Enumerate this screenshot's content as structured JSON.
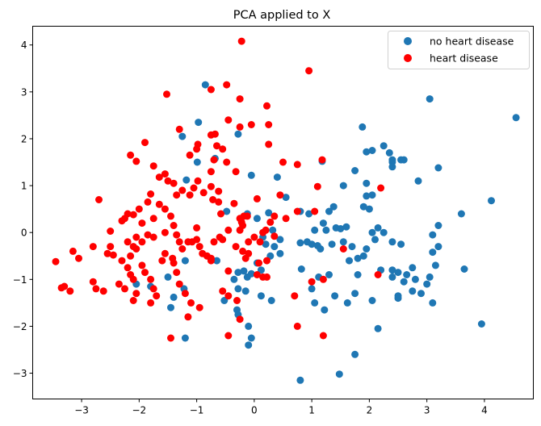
{
  "chart_data": {
    "type": "scatter",
    "title": "PCA applied to X",
    "xlabel": "",
    "ylabel": "",
    "xlim": [
      -3.85,
      4.85
    ],
    "ylim": [
      -3.55,
      4.4
    ],
    "xticks": [
      -3,
      -2,
      -1,
      0,
      1,
      2,
      3,
      4
    ],
    "yticks": [
      -3,
      -2,
      -1,
      0,
      1,
      2,
      3,
      4
    ],
    "grid": false,
    "legend_position": "top-right",
    "series": [
      {
        "name": "no heart disease",
        "color": "#1f77b4",
        "points": [
          [
            -0.85,
            3.15
          ],
          [
            -0.97,
            2.35
          ],
          [
            -1.25,
            2.05
          ],
          [
            -0.68,
            1.58
          ],
          [
            -0.99,
            1.5
          ],
          [
            -1.18,
            1.12
          ],
          [
            -0.28,
            2.1
          ],
          [
            -0.48,
            0.45
          ],
          [
            -0.12,
            0.4
          ],
          [
            0.05,
            0.3
          ],
          [
            0.25,
            0.42
          ],
          [
            -0.05,
            1.22
          ],
          [
            0.4,
            1.18
          ],
          [
            0.55,
            0.75
          ],
          [
            0.32,
            0.05
          ],
          [
            0.15,
            -0.1
          ],
          [
            0.28,
            -0.5
          ],
          [
            0.35,
            -0.3
          ],
          [
            0.45,
            -0.45
          ],
          [
            0.05,
            -0.65
          ],
          [
            0.12,
            -0.8
          ],
          [
            -0.05,
            -0.88
          ],
          [
            -0.12,
            -0.95
          ],
          [
            -0.18,
            -0.82
          ],
          [
            -0.28,
            -0.85
          ],
          [
            -0.35,
            -1.0
          ],
          [
            -0.52,
            -1.45
          ],
          [
            -0.28,
            -1.2
          ],
          [
            -0.15,
            -1.25
          ],
          [
            -0.3,
            -1.65
          ],
          [
            -0.28,
            -1.75
          ],
          [
            -0.1,
            -2.0
          ],
          [
            -0.05,
            -2.25
          ],
          [
            -0.1,
            -2.4
          ],
          [
            -0.65,
            -0.6
          ],
          [
            -1.2,
            -0.6
          ],
          [
            -1.22,
            -1.2
          ],
          [
            -1.4,
            -1.38
          ],
          [
            -1.45,
            -1.6
          ],
          [
            -1.2,
            -2.25
          ],
          [
            -1.8,
            -1.15
          ],
          [
            -2.05,
            -1.1
          ],
          [
            -1.5,
            -0.95
          ],
          [
            0.12,
            -1.35
          ],
          [
            0.3,
            -1.45
          ],
          [
            0.8,
            -3.15
          ],
          [
            1.48,
            -3.02
          ],
          [
            1.75,
            -2.6
          ],
          [
            1.0,
            -1.2
          ],
          [
            1.05,
            -1.5
          ],
          [
            1.22,
            -1.65
          ],
          [
            1.4,
            -1.35
          ],
          [
            1.12,
            -0.95
          ],
          [
            1.3,
            -0.9
          ],
          [
            1.62,
            -1.5
          ],
          [
            1.75,
            -1.3
          ],
          [
            1.0,
            -0.25
          ],
          [
            1.1,
            -0.28
          ],
          [
            0.92,
            -0.2
          ],
          [
            0.8,
            -0.22
          ],
          [
            0.82,
            -0.78
          ],
          [
            1.25,
            0.05
          ],
          [
            1.35,
            -0.25
          ],
          [
            1.42,
            0.1
          ],
          [
            1.5,
            0.08
          ],
          [
            1.38,
            0.55
          ],
          [
            1.3,
            0.45
          ],
          [
            1.2,
            0.2
          ],
          [
            0.95,
            0.4
          ],
          [
            0.8,
            0.45
          ],
          [
            1.18,
            1.52
          ],
          [
            1.55,
            1.0
          ],
          [
            1.75,
            1.32
          ],
          [
            1.95,
            1.05
          ],
          [
            1.95,
            0.78
          ],
          [
            2.0,
            0.5
          ],
          [
            2.05,
            0.8
          ],
          [
            2.05,
            1.75
          ],
          [
            1.95,
            1.72
          ],
          [
            1.88,
            2.25
          ],
          [
            2.25,
            1.85
          ],
          [
            2.35,
            1.7
          ],
          [
            2.4,
            1.5
          ],
          [
            2.4,
            1.4
          ],
          [
            2.4,
            1.55
          ],
          [
            2.55,
            1.55
          ],
          [
            2.6,
            1.55
          ],
          [
            2.85,
            1.1
          ],
          [
            3.05,
            2.85
          ],
          [
            3.2,
            1.38
          ],
          [
            3.2,
            0.15
          ],
          [
            3.1,
            -0.05
          ],
          [
            3.1,
            -0.42
          ],
          [
            3.15,
            -0.7
          ],
          [
            3.2,
            -0.3
          ],
          [
            3.05,
            -0.95
          ],
          [
            3.0,
            -1.1
          ],
          [
            2.9,
            -1.3
          ],
          [
            2.75,
            -0.75
          ],
          [
            2.65,
            -0.9
          ],
          [
            2.8,
            -1.0
          ],
          [
            2.75,
            -1.25
          ],
          [
            2.5,
            -1.35
          ],
          [
            2.5,
            -1.4
          ],
          [
            2.6,
            -1.05
          ],
          [
            2.4,
            -0.95
          ],
          [
            2.55,
            -0.25
          ],
          [
            2.5,
            -0.85
          ],
          [
            2.4,
            -0.8
          ],
          [
            2.2,
            -0.8
          ],
          [
            2.1,
            -0.15
          ],
          [
            2.05,
            0.0
          ],
          [
            1.95,
            -0.35
          ],
          [
            1.9,
            -0.5
          ],
          [
            1.8,
            -0.55
          ],
          [
            1.65,
            -0.6
          ],
          [
            1.7,
            -0.3
          ],
          [
            1.55,
            -0.2
          ],
          [
            1.6,
            0.12
          ],
          [
            1.8,
            -0.9
          ],
          [
            2.15,
            -2.05
          ],
          [
            2.05,
            -1.45
          ],
          [
            2.25,
            0.0
          ],
          [
            3.1,
            -1.5
          ],
          [
            3.6,
            0.4
          ],
          [
            3.65,
            -0.78
          ],
          [
            3.95,
            -1.95
          ],
          [
            4.12,
            0.68
          ],
          [
            4.55,
            2.45
          ],
          [
            1.9,
            0.55
          ],
          [
            2.4,
            -0.2
          ],
          [
            2.15,
            0.1
          ],
          [
            0.45,
            -0.15
          ],
          [
            0.2,
            -0.25
          ],
          [
            1.05,
            0.05
          ],
          [
            1.15,
            -0.35
          ]
        ]
      },
      {
        "name": "heart disease",
        "color": "#ff0000",
        "points": [
          [
            -0.22,
            4.08
          ],
          [
            0.95,
            3.45
          ],
          [
            -1.52,
            2.95
          ],
          [
            -0.75,
            3.05
          ],
          [
            -0.48,
            3.15
          ],
          [
            -0.25,
            2.85
          ],
          [
            0.22,
            2.7
          ],
          [
            -0.45,
            2.4
          ],
          [
            -0.25,
            2.25
          ],
          [
            -0.05,
            2.3
          ],
          [
            0.25,
            2.3
          ],
          [
            0.25,
            1.88
          ],
          [
            -1.3,
            2.2
          ],
          [
            -0.98,
            1.88
          ],
          [
            -1.0,
            1.78
          ],
          [
            -1.12,
            1.65
          ],
          [
            -0.75,
            2.08
          ],
          [
            -0.68,
            2.1
          ],
          [
            -0.65,
            1.85
          ],
          [
            -0.55,
            1.78
          ],
          [
            -0.7,
            1.55
          ],
          [
            -0.75,
            1.3
          ],
          [
            -0.32,
            1.3
          ],
          [
            -0.48,
            1.5
          ],
          [
            -1.9,
            1.92
          ],
          [
            -2.15,
            1.65
          ],
          [
            -2.05,
            1.52
          ],
          [
            -1.75,
            1.42
          ],
          [
            -1.65,
            1.18
          ],
          [
            -1.5,
            1.1
          ],
          [
            -1.55,
            1.25
          ],
          [
            -1.4,
            1.05
          ],
          [
            -1.35,
            0.8
          ],
          [
            -1.25,
            0.9
          ],
          [
            -1.12,
            0.8
          ],
          [
            -1.05,
            0.95
          ],
          [
            -0.98,
            1.1
          ],
          [
            -0.88,
            0.85
          ],
          [
            -0.72,
            0.7
          ],
          [
            -0.62,
            0.65
          ],
          [
            -0.62,
            0.88
          ],
          [
            -0.75,
            0.98
          ],
          [
            -0.35,
            0.62
          ],
          [
            -0.25,
            0.3
          ],
          [
            -0.18,
            0.35
          ],
          [
            -0.12,
            0.35
          ],
          [
            -0.22,
            0.22
          ],
          [
            -0.25,
            0.05
          ],
          [
            0.05,
            0.72
          ],
          [
            0.45,
            0.8
          ],
          [
            0.35,
            0.35
          ],
          [
            0.28,
            0.22
          ],
          [
            0.2,
            0.05
          ],
          [
            0.5,
            1.5
          ],
          [
            0.75,
            1.45
          ],
          [
            1.18,
            1.55
          ],
          [
            1.1,
            0.98
          ],
          [
            0.75,
            0.45
          ],
          [
            1.05,
            0.45
          ],
          [
            2.2,
            0.95
          ],
          [
            -2.2,
            0.4
          ],
          [
            -2.25,
            0.3
          ],
          [
            -2.1,
            0.38
          ],
          [
            -2.3,
            0.25
          ],
          [
            -2.5,
            0.03
          ],
          [
            -2.7,
            0.7
          ],
          [
            -2.0,
            0.5
          ],
          [
            -1.85,
            0.65
          ],
          [
            -1.8,
            0.82
          ],
          [
            -1.65,
            0.6
          ],
          [
            -1.55,
            0.5
          ],
          [
            -1.75,
            0.3
          ],
          [
            -1.95,
            0.2
          ],
          [
            -2.05,
            -0.1
          ],
          [
            -2.2,
            -0.2
          ],
          [
            -2.1,
            -0.3
          ],
          [
            -1.95,
            -0.2
          ],
          [
            -1.85,
            -0.05
          ],
          [
            -1.75,
            -0.1
          ],
          [
            -1.55,
            0.0
          ],
          [
            -1.35,
            -0.05
          ],
          [
            -1.3,
            -0.2
          ],
          [
            -1.25,
            -0.35
          ],
          [
            -1.15,
            -0.2
          ],
          [
            -1.08,
            -0.2
          ],
          [
            -1.0,
            -0.15
          ],
          [
            -0.95,
            -0.3
          ],
          [
            -0.9,
            -0.45
          ],
          [
            -0.82,
            -0.5
          ],
          [
            -0.75,
            -0.6
          ],
          [
            -0.7,
            -0.2
          ],
          [
            -0.6,
            -0.1
          ],
          [
            -0.55,
            -0.15
          ],
          [
            -0.45,
            0.05
          ],
          [
            -0.32,
            -0.3
          ],
          [
            -0.2,
            -0.4
          ],
          [
            -0.15,
            -0.55
          ],
          [
            -0.1,
            -0.45
          ],
          [
            0.0,
            -0.1
          ],
          [
            0.1,
            -0.2
          ],
          [
            0.15,
            0.0
          ],
          [
            0.08,
            -0.65
          ],
          [
            0.22,
            -0.6
          ],
          [
            0.22,
            -0.95
          ],
          [
            -3.45,
            -0.62
          ],
          [
            -3.3,
            -1.15
          ],
          [
            -3.35,
            -1.18
          ],
          [
            -3.2,
            -1.25
          ],
          [
            -3.05,
            -0.55
          ],
          [
            -3.15,
            -0.4
          ],
          [
            -2.8,
            -1.05
          ],
          [
            -2.75,
            -1.2
          ],
          [
            -2.62,
            -1.25
          ],
          [
            -2.5,
            -0.3
          ],
          [
            -2.45,
            -0.48
          ],
          [
            -2.35,
            -1.1
          ],
          [
            -2.25,
            -1.2
          ],
          [
            -2.3,
            -0.6
          ],
          [
            -2.2,
            -0.75
          ],
          [
            -2.15,
            -0.5
          ],
          [
            -2.05,
            -0.35
          ],
          [
            -1.95,
            -0.7
          ],
          [
            -1.9,
            -0.85
          ],
          [
            -1.8,
            -1.0
          ],
          [
            -1.75,
            -1.2
          ],
          [
            -1.7,
            -1.35
          ],
          [
            -1.8,
            -1.5
          ],
          [
            -2.1,
            -1.45
          ],
          [
            -2.05,
            -1.3
          ],
          [
            -2.15,
            -0.9
          ],
          [
            -2.1,
            -1.0
          ],
          [
            -1.6,
            -0.6
          ],
          [
            -1.55,
            -0.45
          ],
          [
            -1.42,
            -0.55
          ],
          [
            -1.4,
            -0.65
          ],
          [
            -1.35,
            -0.85
          ],
          [
            -1.3,
            -1.1
          ],
          [
            -1.2,
            -1.3
          ],
          [
            -1.1,
            -1.5
          ],
          [
            -1.15,
            -1.8
          ],
          [
            -0.95,
            -1.6
          ],
          [
            -0.75,
            -0.55
          ],
          [
            -0.55,
            -1.25
          ],
          [
            -0.45,
            -1.35
          ],
          [
            -0.3,
            -1.45
          ],
          [
            -0.25,
            -1.85
          ],
          [
            -0.45,
            -2.2
          ],
          [
            -1.45,
            -2.25
          ],
          [
            0.05,
            -0.9
          ],
          [
            0.15,
            -0.95
          ],
          [
            0.7,
            -1.35
          ],
          [
            0.75,
            -2.0
          ],
          [
            1.0,
            -1.05
          ],
          [
            1.2,
            -1.0
          ],
          [
            1.2,
            -2.2
          ],
          [
            1.55,
            -0.35
          ],
          [
            2.15,
            -0.9
          ],
          [
            -2.55,
            -0.45
          ],
          [
            -2.8,
            -0.3
          ],
          [
            -1.4,
            0.15
          ],
          [
            -1.45,
            0.35
          ],
          [
            -0.58,
            0.4
          ],
          [
            -0.2,
            0.15
          ],
          [
            0.55,
            0.3
          ],
          [
            -0.45,
            -0.82
          ],
          [
            -0.1,
            -0.2
          ],
          [
            0.35,
            -0.08
          ],
          [
            -1.0,
            0.1
          ]
        ]
      }
    ]
  }
}
